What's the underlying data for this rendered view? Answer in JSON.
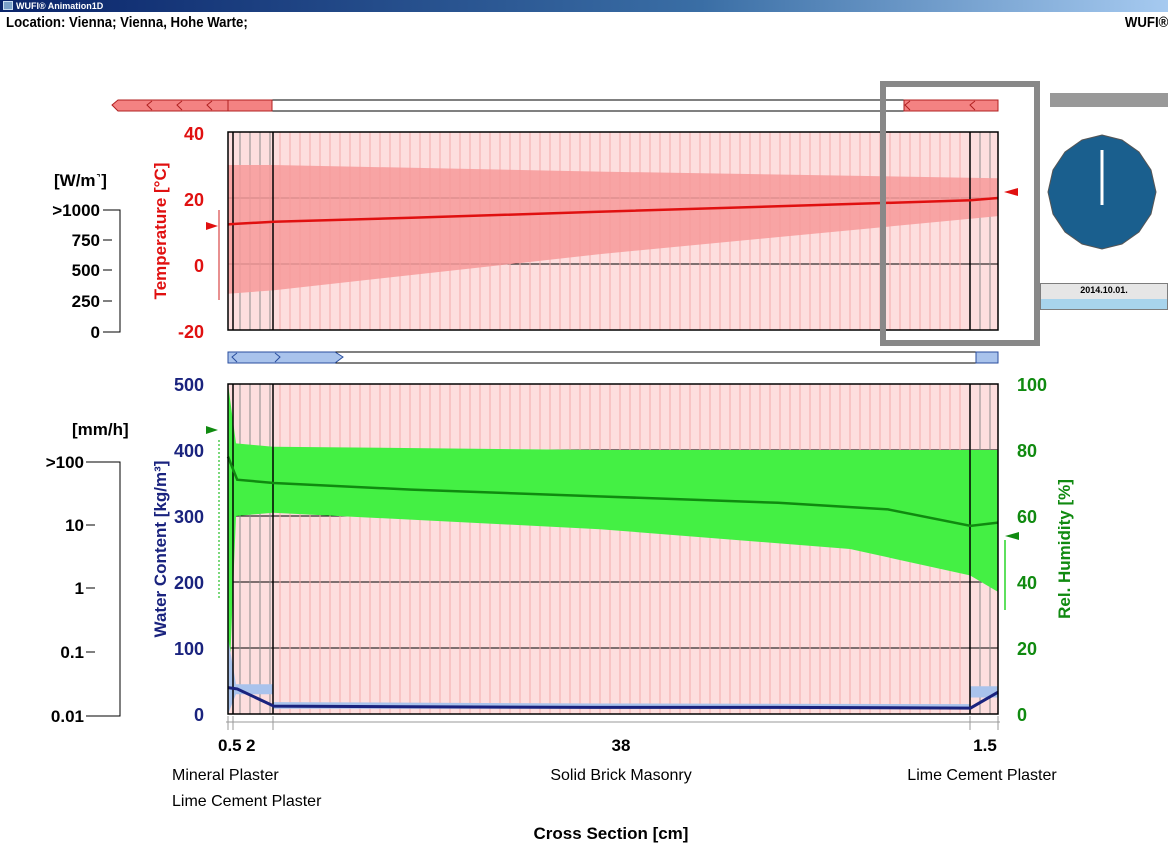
{
  "window": {
    "title": "WUFI® Animation1D"
  },
  "header": {
    "location": "Location: Vienna; Vienna, Hohe Warte;",
    "brand": "WUFI®"
  },
  "clock": {
    "date": "2014.10.01."
  },
  "colors": {
    "temperature": "#e01010",
    "temp_band": "#f79a9a",
    "layer_fill": "#fddede",
    "water": "#1a237e",
    "water_band": "#a9c3ec",
    "rh": "#108a10",
    "rh_band": "#44f044",
    "clock": "#1a5f8e"
  },
  "top_panel": {
    "flux_unit": "[W/m˺]",
    "flux_ticks": [
      ">1000",
      "750",
      "500",
      "250",
      "0"
    ],
    "temp_axis_label": "Temperature [°C]",
    "temp_ticks": [
      "40",
      "20",
      "0",
      "-20"
    ]
  },
  "bottom_panel": {
    "rain_unit": "[mm/h]",
    "rain_ticks": [
      ">100",
      "10",
      "1",
      "0.1",
      "0.01"
    ],
    "water_axis_label": "Water Content [kg/m³]",
    "water_ticks": [
      "500",
      "400",
      "300",
      "200",
      "100",
      "0"
    ],
    "rh_axis_label": "Rel. Humidity [%]",
    "rh_ticks": [
      "100",
      "80",
      "60",
      "40",
      "20",
      "0"
    ]
  },
  "cross_section": {
    "thickness_labels": [
      "0.5",
      "2",
      "38",
      "1.5"
    ],
    "layer_names": [
      "Mineral Plaster",
      "Lime Cement Plaster",
      "Solid Brick Masonry",
      "Lime Cement Plaster"
    ],
    "xlabel": "Cross Section [cm]"
  },
  "chart_data": [
    {
      "type": "line",
      "ylabel": "Temperature [°C]",
      "ylim": [
        -20,
        40
      ],
      "x": [
        0,
        0.5,
        2.5,
        10,
        20,
        30,
        40.5,
        42
      ],
      "series": [
        {
          "values": [
            12,
            12.2,
            12.8,
            14,
            15.8,
            17.5,
            19.3,
            20
          ]
        }
      ]
    },
    {
      "type": "line",
      "ylabel": "Water Content [kg/m³]",
      "ylim": [
        0,
        500
      ],
      "x": [
        0,
        0.5,
        2.5,
        10,
        20,
        30,
        40.5,
        42
      ],
      "series": [
        {
          "values": [
            40,
            38,
            12,
            11,
            10,
            10,
            9,
            33
          ]
        }
      ]
    },
    {
      "type": "line",
      "ylabel": "Rel. Humidity [%]",
      "ylim": [
        0,
        100
      ],
      "x": [
        0,
        0.5,
        2.5,
        10,
        20,
        30,
        36,
        40.5,
        42
      ],
      "series": [
        {
          "values": [
            78,
            71,
            70,
            68,
            66,
            64,
            62,
            57,
            58
          ]
        }
      ]
    }
  ]
}
